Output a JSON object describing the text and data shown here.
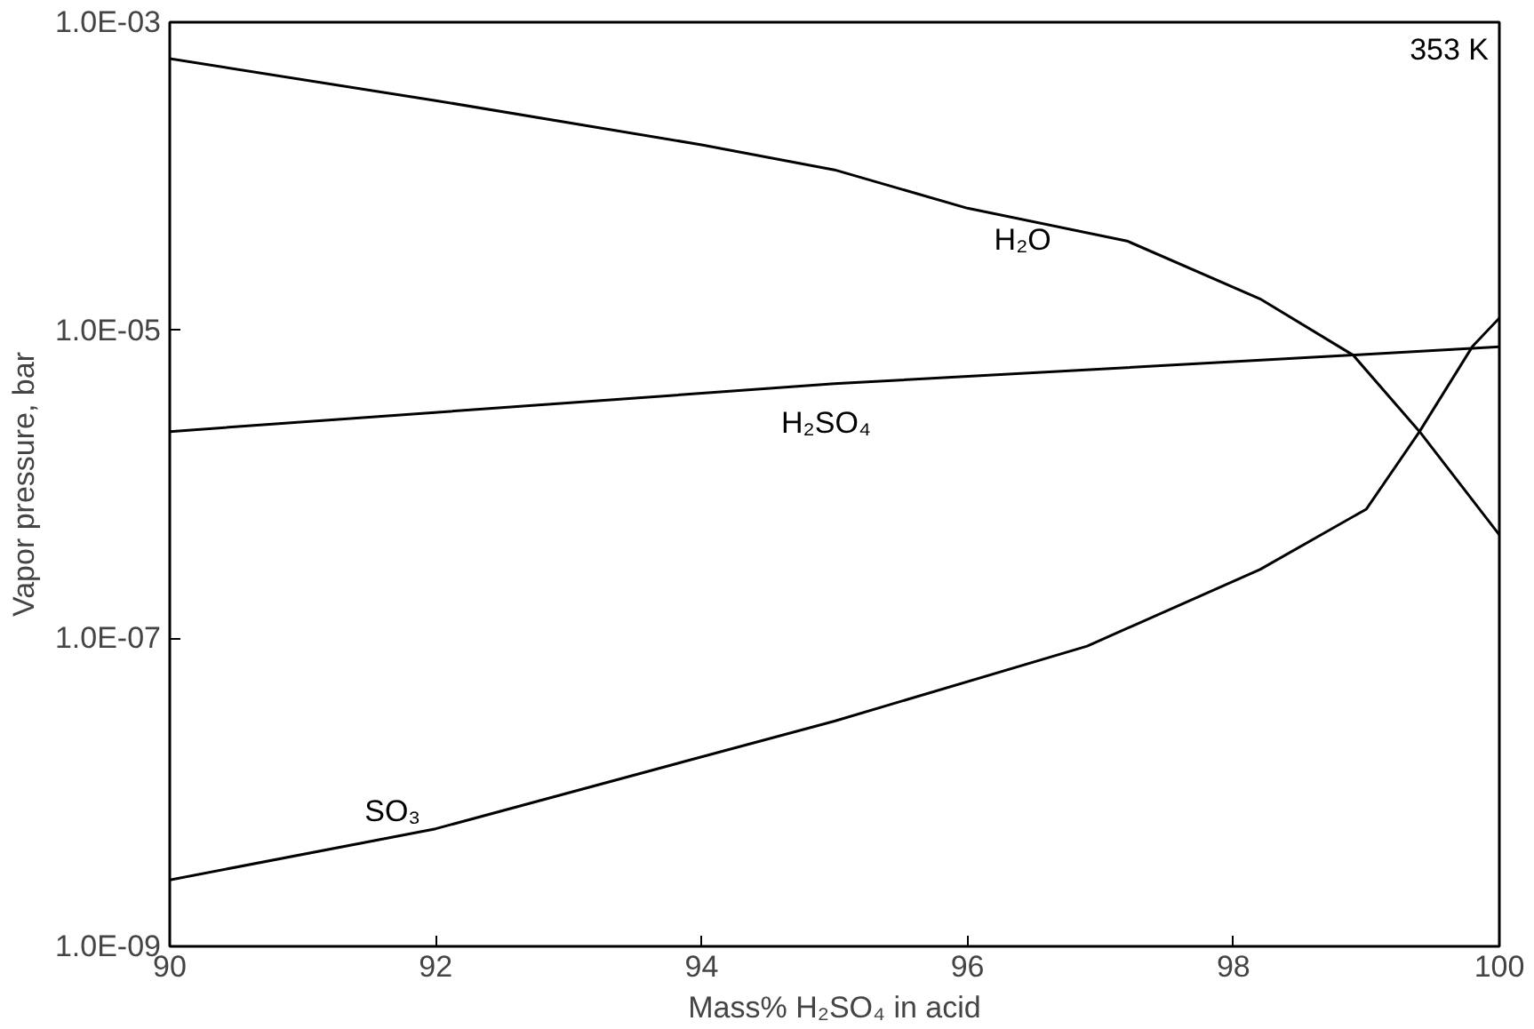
{
  "chart_data": {
    "type": "line",
    "xlabel": "Mass% H₂SO₄ in acid",
    "ylabel": "Vapor pressure, bar",
    "log": "y",
    "grid": false,
    "annotations": [
      "353 K"
    ],
    "xlim": [
      90,
      100
    ],
    "xticks": [
      90,
      92,
      94,
      96,
      98,
      100
    ],
    "ylim": [
      1e-09,
      0.001
    ],
    "yticks": [
      {
        "value": 1e-09,
        "label": "1.0E-09"
      },
      {
        "value": 1e-07,
        "label": "1.0E-07"
      },
      {
        "value": 1e-05,
        "label": "1.0E-05"
      },
      {
        "value": 0.001,
        "label": "1.0E-03"
      }
    ],
    "series": [
      {
        "name": "H₂O",
        "color": "#000000",
        "x": [
          90,
          92,
          94,
          95,
          96,
          97.2,
          98.2,
          98.9,
          99.4,
          100
        ],
        "values": [
          0.00058,
          0.00031,
          0.00016,
          0.00011,
          6.2e-05,
          3.8e-05,
          1.6e-05,
          6.9e-06,
          2.2e-06,
          4.7e-07
        ]
      },
      {
        "name": "H₂SO₄",
        "color": "#000000",
        "x": [
          90,
          95,
          98.9,
          100
        ],
        "values": [
          2.2e-06,
          4.5e-06,
          6.9e-06,
          7.8e-06
        ]
      },
      {
        "name": "SO₃",
        "color": "#000000",
        "x": [
          90,
          92,
          94,
          95,
          96.9,
          98.2,
          99,
          99.4,
          99.8,
          100
        ],
        "values": [
          2.7e-09,
          5.8e-09,
          1.7e-08,
          2.9e-08,
          8.9e-08,
          2.8e-07,
          6.9e-07,
          2.2e-06,
          7.9e-06,
          1.2e-05
        ]
      }
    ]
  }
}
